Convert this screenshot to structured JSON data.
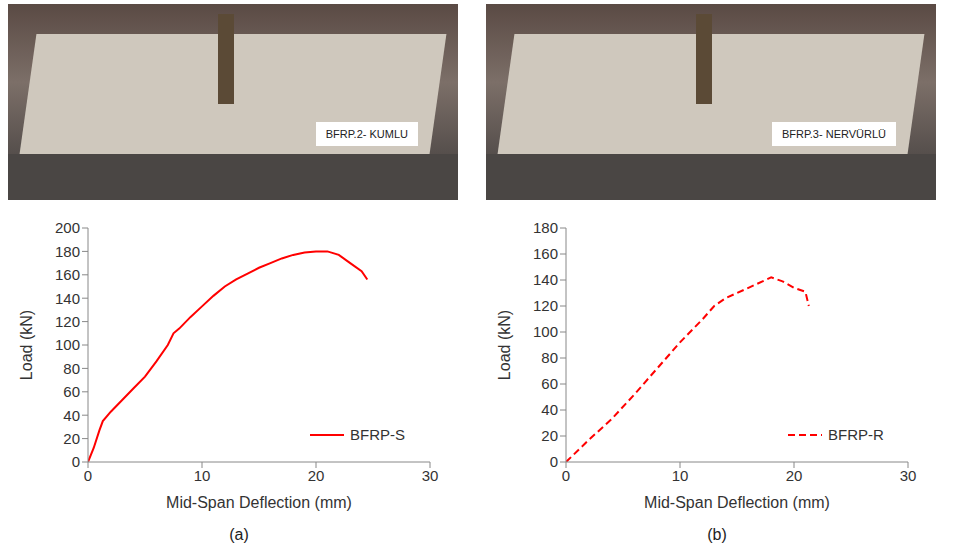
{
  "panels": [
    {
      "photo": {
        "sign": "BFRP.2- KUMLU"
      },
      "caption": "(a)"
    },
    {
      "photo": {
        "sign": "BFRP.3- NERVÜRLÜ"
      },
      "caption": "(b)"
    }
  ],
  "chart_data": [
    {
      "type": "line",
      "x_label": "Mid-Span Deflection (mm)",
      "y_label": "Load (kN)",
      "x": [
        0,
        0.5,
        1,
        1.3,
        2,
        3,
        4,
        5,
        6,
        7,
        7.5,
        8,
        9,
        10,
        11,
        12,
        13,
        14,
        15,
        16,
        17,
        18,
        19,
        20,
        21,
        22,
        23,
        24,
        24.5
      ],
      "series": [
        {
          "name": "BFRP-S",
          "color": "#ff0000",
          "line_style": "solid",
          "values": [
            0,
            12,
            27,
            35,
            43,
            53,
            63,
            73,
            86,
            100,
            110,
            114,
            124,
            133,
            142,
            150,
            156,
            161,
            166,
            170,
            174,
            177,
            179,
            180,
            180,
            177,
            170,
            163,
            156
          ]
        }
      ],
      "xlim": [
        0,
        30
      ],
      "xticks": [
        0,
        10,
        20,
        30
      ],
      "ylim": [
        0,
        200
      ],
      "yticks": [
        0,
        20,
        40,
        60,
        80,
        100,
        120,
        140,
        160,
        180,
        200
      ],
      "grid": false,
      "legend": "lower right"
    },
    {
      "type": "line",
      "x_label": "Mid-Span Deflection (mm)",
      "y_label": "Load (kN)",
      "x": [
        0,
        2,
        4,
        6,
        8,
        10,
        12,
        13,
        14,
        16,
        18,
        19,
        20,
        21,
        21.3
      ],
      "series": [
        {
          "name": "BFRP-R",
          "color": "#ff0000",
          "line_style": "dashed",
          "values": [
            0,
            17,
            33,
            52,
            72,
            92,
            110,
            120,
            126,
            134,
            142,
            139,
            134,
            131,
            120
          ]
        }
      ],
      "xlim": [
        0,
        30
      ],
      "xticks": [
        0,
        10,
        20,
        30
      ],
      "ylim": [
        0,
        180
      ],
      "yticks": [
        0,
        20,
        40,
        60,
        80,
        100,
        120,
        140,
        160,
        180
      ],
      "grid": false,
      "legend": "lower right"
    }
  ]
}
